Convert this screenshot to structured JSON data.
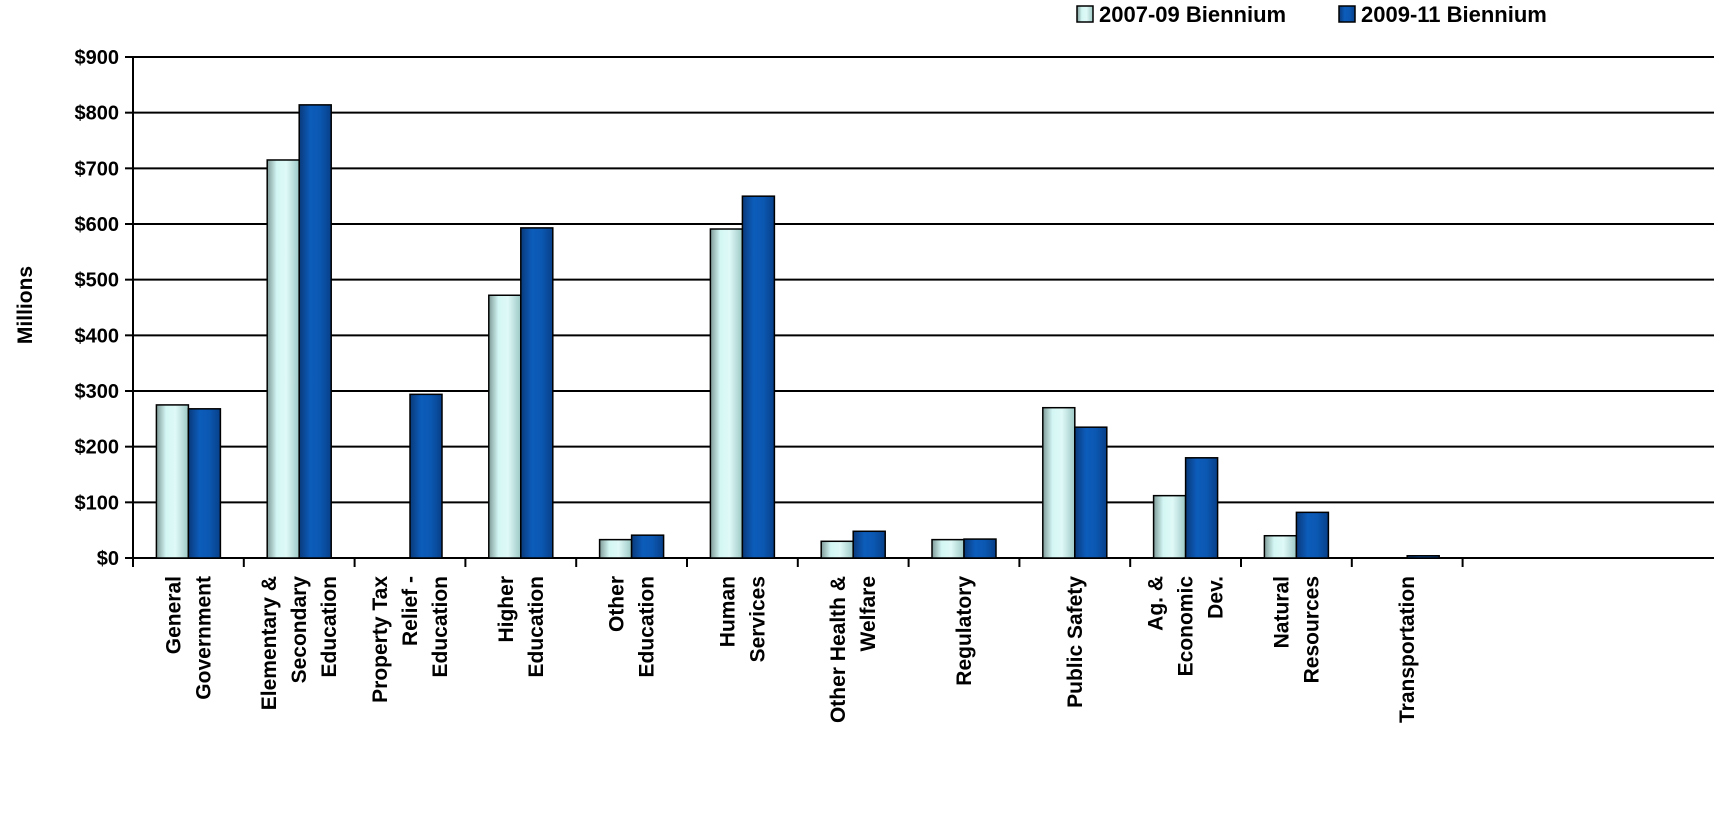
{
  "chart_data": {
    "type": "bar",
    "title": "",
    "xlabel": "",
    "ylabel": "Millions",
    "ylim": [
      0,
      900
    ],
    "y_ticks": [
      "$0",
      "$100",
      "$200",
      "$300",
      "$400",
      "$500",
      "$600",
      "$700",
      "$800",
      "$900"
    ],
    "grid": true,
    "legend_position": "top-right",
    "categories": [
      [
        "General",
        "Government"
      ],
      [
        "Elementary &",
        "Secondary",
        "Education"
      ],
      [
        "Property Tax",
        "Relief -",
        "Education"
      ],
      [
        "Higher",
        "Education"
      ],
      [
        "Other",
        "Education"
      ],
      [
        "Human",
        "Services"
      ],
      [
        "Other Health &",
        "Welfare"
      ],
      [
        "Regulatory"
      ],
      [
        "Public Safety"
      ],
      [
        "Ag. &",
        "Economic",
        "Dev."
      ],
      [
        "Natural",
        "Resources"
      ],
      [
        "Transportation"
      ]
    ],
    "series": [
      {
        "name": "2007-09 Biennium",
        "color": "#c8f0ec",
        "values": [
          275,
          715,
          0,
          472,
          33,
          591,
          30,
          33,
          270,
          112,
          40,
          0
        ]
      },
      {
        "name": "2009-11 Biennium",
        "color": "#0a52a8",
        "values": [
          268,
          814,
          294,
          593,
          41,
          650,
          48,
          34,
          235,
          180,
          82,
          4
        ]
      }
    ]
  }
}
